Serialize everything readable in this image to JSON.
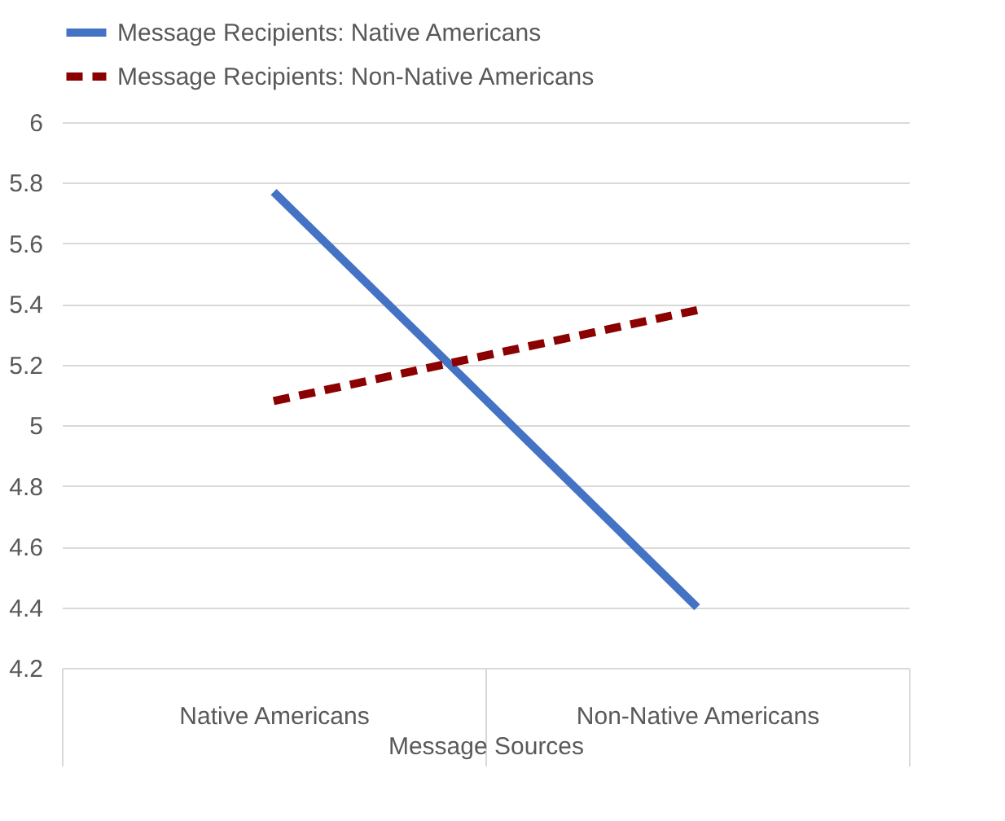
{
  "chart_data": {
    "type": "line",
    "xlabel": "Message Sources",
    "categories": [
      "Native Americans",
      "Non-Native Americans"
    ],
    "series": [
      {
        "name": "Message Recipients: Native Americans",
        "color": "#4472c4",
        "line_style": "solid",
        "values": [
          5.77,
          4.4
        ]
      },
      {
        "name": "Message Recipients: Non-Native Americans",
        "color": "#8b0000",
        "line_style": "dashed",
        "values": [
          5.08,
          5.38
        ]
      }
    ],
    "ylim": [
      4.2,
      6
    ],
    "yticks": [
      4.2,
      4.4,
      4.6,
      4.8,
      {
        "value": 5,
        "label": "5"
      },
      5.2,
      5.4,
      5.6,
      5.8,
      {
        "value": 6,
        "label": "6"
      }
    ],
    "grid": "y",
    "legend": "top",
    "marker": "none"
  }
}
